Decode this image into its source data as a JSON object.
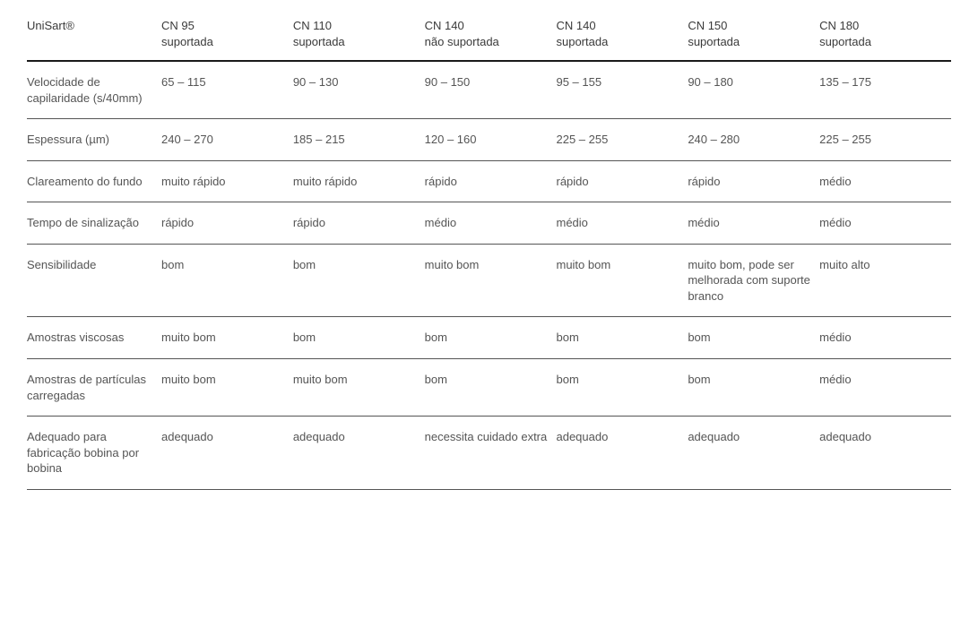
{
  "table": {
    "brand_header": "UniSart®",
    "columns": [
      {
        "line1": "CN 95",
        "line2": "suportada"
      },
      {
        "line1": "CN 110",
        "line2": "suportada"
      },
      {
        "line1": "CN 140",
        "line2": "não suportada"
      },
      {
        "line1": "CN 140",
        "line2": "suportada"
      },
      {
        "line1": "CN 150",
        "line2": "suportada"
      },
      {
        "line1": "CN 180",
        "line2": "suportada"
      }
    ],
    "rows": [
      {
        "label": "Velocidade de capilaridade (s/40mm)",
        "values": [
          "65 – 115",
          "90 – 130",
          "90 – 150",
          "95 – 155",
          "90 – 180",
          "135 – 175"
        ]
      },
      {
        "label": "Espessura (µm)",
        "values": [
          "240 – 270",
          "185 – 215",
          "120 – 160",
          "225 – 255",
          "240 – 280",
          "225 – 255"
        ]
      },
      {
        "label": "Clareamento do fundo",
        "values": [
          "muito rápido",
          "muito rápido",
          "rápido",
          "rápido",
          "rápido",
          "médio"
        ]
      },
      {
        "label": "Tempo de sinali­zação",
        "values": [
          "rápido",
          "rápido",
          "médio",
          "médio",
          "médio",
          "médio"
        ]
      },
      {
        "label": "Sensibilidade",
        "values": [
          "bom",
          "bom",
          "muito bom",
          "muito bom",
          "muito bom, pode ser melhorada com suporte branco",
          "muito alto"
        ]
      },
      {
        "label": "Amostras viscosas",
        "values": [
          "muito bom",
          "bom",
          "bom",
          "bom",
          "bom",
          "médio"
        ]
      },
      {
        "label": "Amostras de partículas carre­gadas",
        "values": [
          "muito bom",
          "muito bom",
          "bom",
          "bom",
          "bom",
          "médio"
        ]
      },
      {
        "label": "Adequado para fabricação bobi­na por bobina",
        "values": [
          "adequado",
          "adequado",
          "necessita cuida­do extra",
          "adequado",
          "adequado",
          "adequado"
        ]
      }
    ],
    "styling": {
      "font_family": "Arial",
      "base_fontsize": 13,
      "text_color": "#555555",
      "header_text_color": "#3a3a3a",
      "background_color": "#ffffff",
      "header_divider_color": "#1a1a1a",
      "header_divider_width": 2,
      "row_divider_color": "#555555",
      "row_divider_width": 1,
      "first_col_width": 150,
      "line_height": 1.35
    }
  }
}
